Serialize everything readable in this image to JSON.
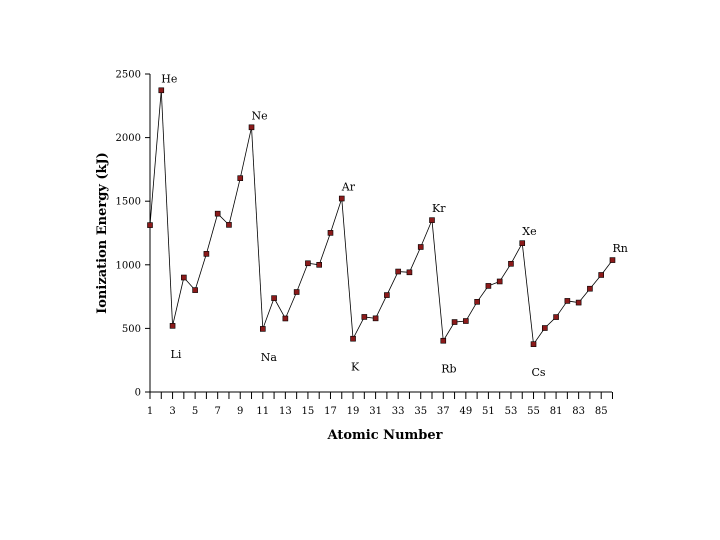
{
  "chart_data": {
    "type": "line",
    "title": "",
    "xlabel": "Atomic Number",
    "ylabel": "Ionization Energy (kJ)",
    "ylim": [
      0,
      2500
    ],
    "yticks": [
      0,
      500,
      1000,
      1500,
      2000,
      2500
    ],
    "xticks": [
      "1",
      "3",
      "5",
      "7",
      "9",
      "11",
      "13",
      "15",
      "17",
      "19",
      "31",
      "33",
      "35",
      "37",
      "49",
      "51",
      "53",
      "55",
      "81",
      "83",
      "85"
    ],
    "grid": false,
    "legend": "none",
    "marker_color": "#8b1a1a",
    "line_color": "#000000",
    "x": [
      "1",
      "2",
      "3",
      "4",
      "5",
      "6",
      "7",
      "8",
      "9",
      "10",
      "11",
      "12",
      "13",
      "14",
      "15",
      "16",
      "17",
      "18",
      "19",
      "20",
      "31",
      "32",
      "33",
      "34",
      "35",
      "36",
      "37",
      "38",
      "49",
      "50",
      "51",
      "52",
      "53",
      "54",
      "55",
      "56",
      "81",
      "82",
      "83",
      "84",
      "85",
      "86"
    ],
    "values": [
      1312,
      2372,
      520,
      900,
      801,
      1086,
      1402,
      1314,
      1681,
      2081,
      496,
      738,
      578,
      786,
      1012,
      1000,
      1251,
      1521,
      419,
      590,
      579,
      762,
      947,
      941,
      1140,
      1351,
      403,
      550,
      558,
      709,
      834,
      869,
      1008,
      1170,
      376,
      503,
      589,
      716,
      703,
      812,
      920,
      1037
    ],
    "annotations": [
      {
        "text": "He",
        "index": 1,
        "position": "above"
      },
      {
        "text": "Li",
        "index": 2,
        "position": "below"
      },
      {
        "text": "Ne",
        "index": 9,
        "position": "above"
      },
      {
        "text": "Na",
        "index": 10,
        "position": "below"
      },
      {
        "text": "Ar",
        "index": 17,
        "position": "above"
      },
      {
        "text": "K",
        "index": 18,
        "position": "below"
      },
      {
        "text": "Kr",
        "index": 25,
        "position": "above"
      },
      {
        "text": "Rb",
        "index": 26,
        "position": "below"
      },
      {
        "text": "Xe",
        "index": 33,
        "position": "above"
      },
      {
        "text": "Cs",
        "index": 34,
        "position": "below"
      },
      {
        "text": "Rn",
        "index": 41,
        "position": "above"
      }
    ]
  }
}
